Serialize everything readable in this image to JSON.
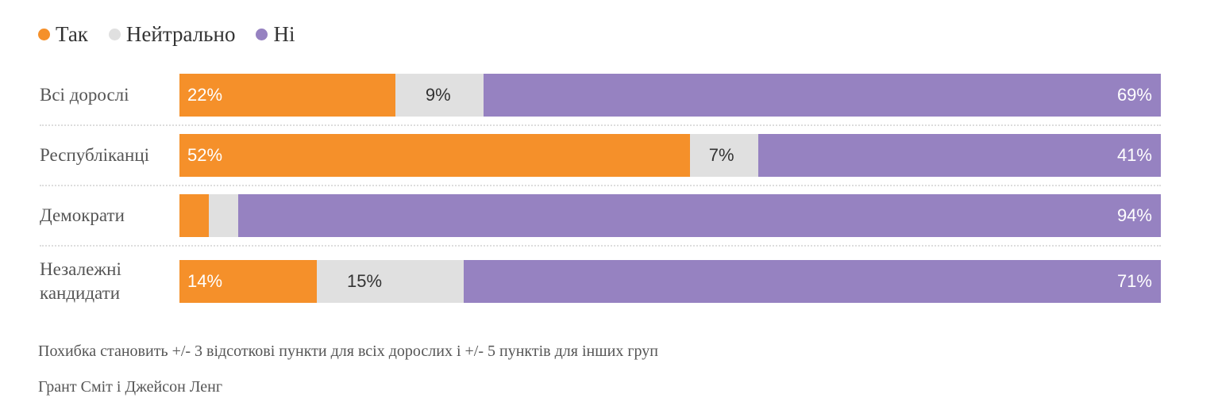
{
  "chart_data": {
    "type": "bar",
    "orientation": "horizontal",
    "stacked": true,
    "legend_position": "top-left",
    "categories": [
      "Всі дорослі",
      "Республіканці",
      "Демократи",
      "Незалежні кандидати"
    ],
    "series": [
      {
        "name": "Так",
        "color": "#f5902a",
        "text_color": "#ffffff",
        "values": [
          22,
          52,
          3,
          14
        ],
        "labels": [
          "22%",
          "52%",
          "",
          "14%"
        ]
      },
      {
        "name": "Нейтрально",
        "color": "#e0e0e0",
        "text_color": "#333333",
        "values": [
          9,
          7,
          3,
          15
        ],
        "labels": [
          "9%",
          "7%",
          "",
          "15%"
        ]
      },
      {
        "name": "Ні",
        "color": "#9682c1",
        "text_color": "#ffffff",
        "values": [
          69,
          41,
          94,
          71
        ],
        "labels": [
          "69%",
          "41%",
          "94%",
          "71%"
        ]
      }
    ],
    "xlim": [
      0,
      100
    ],
    "grid": false
  },
  "footnote": "Похибка становить +/- 3 відсоткові пункти для всіх дорослих і +/- 5 пунктів для інших груп",
  "credit": "Грант Сміт і Джейсон Ленг"
}
